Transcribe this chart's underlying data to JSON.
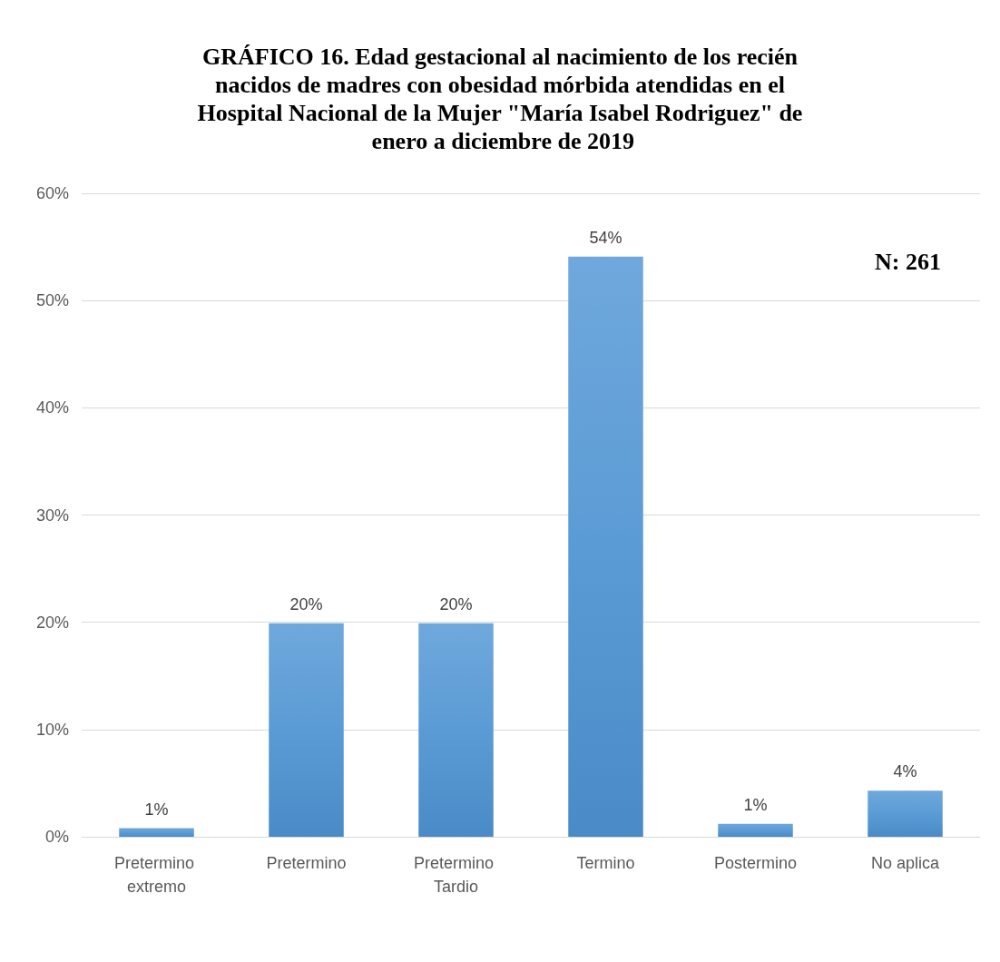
{
  "chart_data": {
    "type": "bar",
    "title": "GRÁFICO 16. Edad gestacional al nacimiento de los recién nacidos de madres con obesidad mórbida atendidas en el Hospital Nacional de la Mujer \"María Isabel Rodriguez\" de enero a diciembre de 2019",
    "categories": [
      "Pretermino extremo",
      "Pretermino",
      "Pretermino Tardio",
      "Termino",
      "Postermino",
      "No aplica"
    ],
    "values": [
      0.8,
      19.9,
      19.9,
      54.1,
      1.2,
      4.3
    ],
    "value_labels": [
      "1%",
      "20%",
      "20%",
      "54%",
      "1%",
      "4%"
    ],
    "color": "#5b9bd5",
    "ylim": [
      0,
      60
    ],
    "yticks": [
      {
        "value": 0,
        "label": "0%"
      },
      {
        "value": 10,
        "label": "10%"
      },
      {
        "value": 20,
        "label": "20%"
      },
      {
        "value": 30,
        "label": "30%"
      },
      {
        "value": 40,
        "label": "40%"
      },
      {
        "value": 50,
        "label": "50%"
      },
      {
        "value": 60,
        "label": "60%"
      }
    ],
    "grid": "y",
    "annotations": [
      "N: 261"
    ]
  }
}
